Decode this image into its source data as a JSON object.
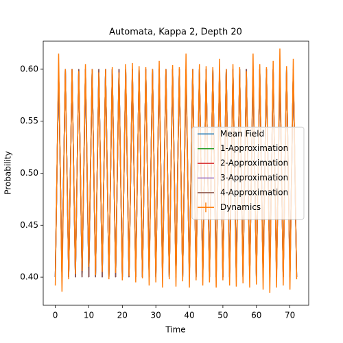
{
  "chart_data": {
    "type": "line",
    "title": "Automata, Kappa 2, Depth 20",
    "xlabel": "Time",
    "ylabel": "Probability",
    "x": [
      0,
      1,
      2,
      3,
      4,
      5,
      6,
      7,
      8,
      9,
      10,
      11,
      12,
      13,
      14,
      15,
      16,
      17,
      18,
      19,
      20,
      21,
      22,
      23,
      24,
      25,
      26,
      27,
      28,
      29,
      30,
      31,
      32,
      33,
      34,
      35,
      36,
      37,
      38,
      39,
      40,
      41,
      42,
      43,
      44,
      45,
      46,
      47,
      48,
      49,
      50,
      51,
      52,
      53,
      54,
      55,
      56,
      57,
      58,
      59,
      60,
      61,
      62,
      63,
      64,
      65,
      66,
      67,
      68,
      69,
      70,
      71,
      72
    ],
    "series": [
      {
        "name": "Mean Field",
        "color": "#1f77b4",
        "values": [
          0.4,
          0.6,
          0.4,
          0.6,
          0.4,
          0.6,
          0.4,
          0.6,
          0.4,
          0.6,
          0.4,
          0.6,
          0.4,
          0.6,
          0.4,
          0.6,
          0.4,
          0.6,
          0.4,
          0.6,
          0.4,
          0.6,
          0.4,
          0.6,
          0.4,
          0.6,
          0.4,
          0.6,
          0.4,
          0.6,
          0.4,
          0.6,
          0.4,
          0.6,
          0.4,
          0.6,
          0.4,
          0.6,
          0.4,
          0.6,
          0.4,
          0.6,
          0.4,
          0.6,
          0.4,
          0.6,
          0.4,
          0.6,
          0.4,
          0.6,
          0.4,
          0.6,
          0.4,
          0.6,
          0.4,
          0.6,
          0.4,
          0.6,
          0.4,
          0.6,
          0.4,
          0.6,
          0.4,
          0.6,
          0.4,
          0.6,
          0.4,
          0.6,
          0.4,
          0.6,
          0.4,
          0.6,
          0.4
        ]
      },
      {
        "name": "1-Approximation",
        "color": "#2ca02c",
        "values": [
          0.4,
          0.6,
          0.4,
          0.6,
          0.4,
          0.6,
          0.4,
          0.6,
          0.4,
          0.6,
          0.4,
          0.6,
          0.4,
          0.6,
          0.4,
          0.6,
          0.4,
          0.6,
          0.4,
          0.6,
          0.4,
          0.6,
          0.4,
          0.6,
          0.4,
          0.6,
          0.4,
          0.6,
          0.4,
          0.6,
          0.4,
          0.6,
          0.4,
          0.6,
          0.4,
          0.6,
          0.4,
          0.6,
          0.4,
          0.6,
          0.4,
          0.6,
          0.4,
          0.6,
          0.4,
          0.6,
          0.4,
          0.6,
          0.4,
          0.6,
          0.4,
          0.6,
          0.4,
          0.6,
          0.4,
          0.6,
          0.4,
          0.6,
          0.4,
          0.6,
          0.4,
          0.6,
          0.4,
          0.6,
          0.4,
          0.6,
          0.4,
          0.6,
          0.4,
          0.6,
          0.4,
          0.6,
          0.4
        ]
      },
      {
        "name": "2-Approximation",
        "color": "#d62728",
        "values": [
          0.4,
          0.6,
          0.4,
          0.6,
          0.4,
          0.6,
          0.4,
          0.6,
          0.4,
          0.6,
          0.4,
          0.6,
          0.4,
          0.6,
          0.4,
          0.6,
          0.4,
          0.6,
          0.4,
          0.6,
          0.4,
          0.6,
          0.4,
          0.6,
          0.4,
          0.6,
          0.4,
          0.6,
          0.4,
          0.6,
          0.4,
          0.6,
          0.4,
          0.6,
          0.4,
          0.6,
          0.4,
          0.6,
          0.4,
          0.6,
          0.4,
          0.6,
          0.4,
          0.6,
          0.4,
          0.6,
          0.4,
          0.6,
          0.4,
          0.6,
          0.4,
          0.6,
          0.4,
          0.6,
          0.4,
          0.6,
          0.4,
          0.6,
          0.4,
          0.6,
          0.4,
          0.6,
          0.4,
          0.6,
          0.4,
          0.6,
          0.4,
          0.6,
          0.4,
          0.6,
          0.4,
          0.6,
          0.4
        ]
      },
      {
        "name": "3-Approximation",
        "color": "#9467bd",
        "values": [
          0.4,
          0.6,
          0.4,
          0.6,
          0.4,
          0.6,
          0.4,
          0.6,
          0.4,
          0.6,
          0.4,
          0.6,
          0.4,
          0.6,
          0.4,
          0.6,
          0.4,
          0.6,
          0.4,
          0.6,
          0.4,
          0.6,
          0.4,
          0.6,
          0.4,
          0.6,
          0.4,
          0.6,
          0.4,
          0.6,
          0.4,
          0.6,
          0.4,
          0.6,
          0.4,
          0.6,
          0.4,
          0.6,
          0.4,
          0.6,
          0.4,
          0.6,
          0.4,
          0.6,
          0.4,
          0.6,
          0.4,
          0.6,
          0.4,
          0.6,
          0.4,
          0.6,
          0.4,
          0.6,
          0.4,
          0.6,
          0.4,
          0.6,
          0.4,
          0.6,
          0.4,
          0.6,
          0.4,
          0.6,
          0.4,
          0.6,
          0.4,
          0.6,
          0.4,
          0.6,
          0.4,
          0.6,
          0.4
        ]
      },
      {
        "name": "4-Approximation",
        "color": "#8c564b",
        "values": [
          0.4,
          0.6,
          0.4,
          0.6,
          0.4,
          0.6,
          0.4,
          0.6,
          0.4,
          0.6,
          0.4,
          0.6,
          0.4,
          0.6,
          0.4,
          0.6,
          0.4,
          0.6,
          0.4,
          0.6,
          0.4,
          0.6,
          0.4,
          0.6,
          0.4,
          0.6,
          0.4,
          0.6,
          0.4,
          0.6,
          0.4,
          0.6,
          0.4,
          0.6,
          0.4,
          0.6,
          0.4,
          0.6,
          0.4,
          0.6,
          0.4,
          0.6,
          0.4,
          0.6,
          0.4,
          0.6,
          0.4,
          0.6,
          0.4,
          0.6,
          0.4,
          0.6,
          0.4,
          0.6,
          0.4,
          0.6,
          0.4,
          0.6,
          0.4,
          0.6,
          0.4,
          0.6,
          0.4,
          0.6,
          0.4,
          0.6,
          0.4,
          0.6,
          0.4,
          0.6,
          0.4,
          0.6,
          0.4
        ]
      },
      {
        "name": "Dynamics",
        "color": "#ff7f0e",
        "values": [
          0.392,
          0.615,
          0.386,
          0.6,
          0.398,
          0.6,
          0.403,
          0.598,
          0.406,
          0.605,
          0.41,
          0.6,
          0.402,
          0.597,
          0.405,
          0.6,
          0.398,
          0.602,
          0.404,
          0.597,
          0.397,
          0.605,
          0.401,
          0.606,
          0.395,
          0.603,
          0.399,
          0.602,
          0.392,
          0.6,
          0.395,
          0.608,
          0.39,
          0.6,
          0.398,
          0.604,
          0.391,
          0.602,
          0.396,
          0.615,
          0.39,
          0.6,
          0.397,
          0.605,
          0.392,
          0.603,
          0.395,
          0.602,
          0.39,
          0.61,
          0.397,
          0.6,
          0.392,
          0.605,
          0.391,
          0.602,
          0.394,
          0.598,
          0.39,
          0.615,
          0.393,
          0.605,
          0.388,
          0.602,
          0.385,
          0.608,
          0.39,
          0.62,
          0.392,
          0.603,
          0.388,
          0.61,
          0.398
        ]
      }
    ],
    "xlim": [
      -3.6,
      75.6
    ],
    "ylim": [
      0.373,
      0.627
    ],
    "xticks": [
      0,
      10,
      20,
      30,
      40,
      50,
      60,
      70
    ],
    "yticks": [
      {
        "value": 0.4,
        "label": "0.40"
      },
      0.45,
      {
        "value": 0.5,
        "label": "0.50"
      },
      0.55,
      {
        "value": 0.6,
        "label": "0.60"
      }
    ],
    "legend": "center right"
  }
}
